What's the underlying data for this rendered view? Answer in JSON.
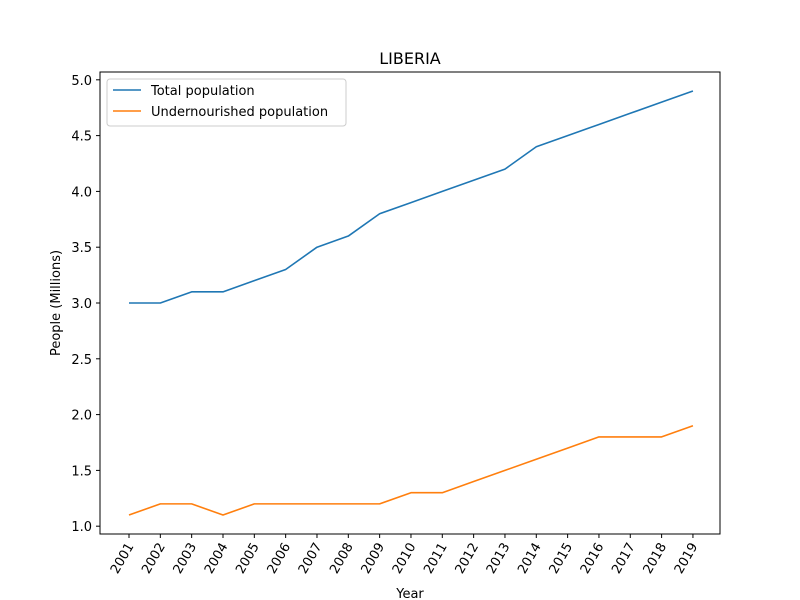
{
  "chart_data": {
    "type": "line",
    "title": "LIBERIA",
    "xlabel": "Year",
    "ylabel": "People (Millions)",
    "x": [
      "2001",
      "2002",
      "2003",
      "2004",
      "2005",
      "2006",
      "2007",
      "2008",
      "2009",
      "2010",
      "2011",
      "2012",
      "2013",
      "2014",
      "2015",
      "2016",
      "2017",
      "2018",
      "2019"
    ],
    "ylim": [
      0.93,
      5.07
    ],
    "yticks": [
      "1.0",
      "1.5",
      "2.0",
      "2.5",
      "3.0",
      "3.5",
      "4.0",
      "4.5",
      "5.0"
    ],
    "grid": false,
    "legend_position": "top-left",
    "series": [
      {
        "name": "Total population",
        "color": "#1f77b4",
        "values": [
          3.0,
          3.0,
          3.1,
          3.1,
          3.2,
          3.3,
          3.5,
          3.6,
          3.8,
          3.9,
          4.0,
          4.1,
          4.2,
          4.4,
          4.5,
          4.6,
          4.7,
          4.8,
          4.9
        ]
      },
      {
        "name": "Undernourished population",
        "color": "#ff7f0e",
        "values": [
          1.1,
          1.2,
          1.2,
          1.1,
          1.2,
          1.2,
          1.2,
          1.2,
          1.2,
          1.3,
          1.3,
          1.4,
          1.5,
          1.6,
          1.7,
          1.8,
          1.8,
          1.8,
          1.9
        ]
      }
    ]
  }
}
